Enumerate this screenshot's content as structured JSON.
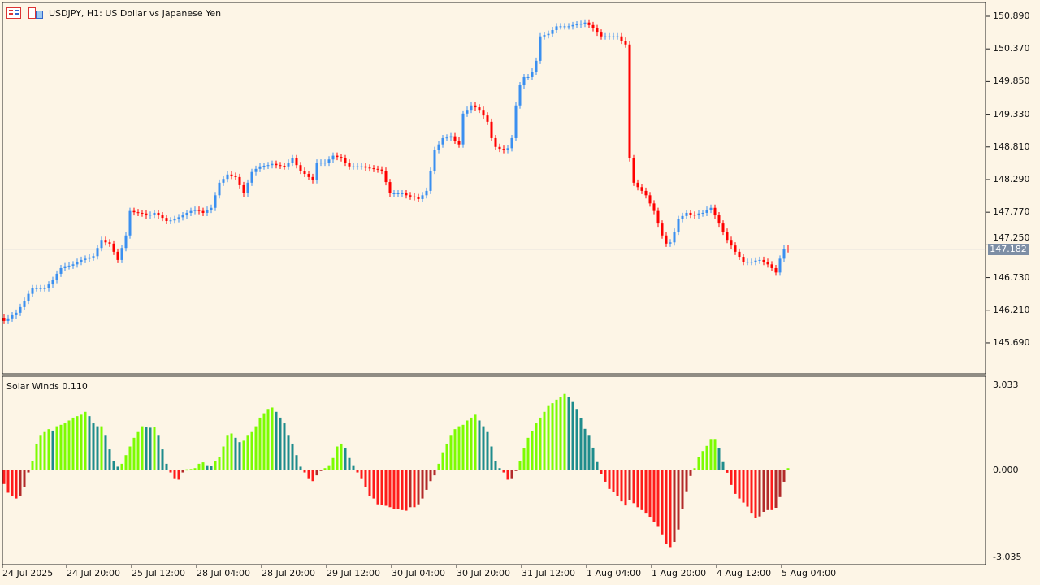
{
  "header": {
    "title": "USDJPY, H1:  US Dollar vs Japanese Yen",
    "icons": [
      "market-watch-icon",
      "chart-window-icon"
    ]
  },
  "indicator": {
    "title": "Solar Winds 0.110"
  },
  "current_price": "147.182",
  "colors": {
    "background": "#fdf5e6",
    "bull": "#3a8ff0",
    "bear": "#ff0000",
    "hist_up": "#7cfc00",
    "hist_down": "#1e8c8c",
    "hist_neg_down": "#ff1a1a",
    "hist_neg_up": "#b22a2a",
    "price_line": "#a8b4c4"
  },
  "chart_data": [
    {
      "type": "candlestick",
      "symbol": "USDJPY",
      "timeframe": "H1",
      "ylim": [
        145.5,
        151.0
      ],
      "y_ticks": [
        "150.890",
        "150.370",
        "149.850",
        "149.330",
        "148.810",
        "148.290",
        "147.770",
        "147.250",
        "146.730",
        "146.210",
        "145.690"
      ],
      "x_ticks": [
        "24 Jul 2025",
        "24 Jul 20:00",
        "25 Jul 12:00",
        "28 Jul 04:00",
        "28 Jul 20:00",
        "29 Jul 12:00",
        "30 Jul 04:00",
        "30 Jul 20:00",
        "31 Jul 12:00",
        "1 Aug 04:00",
        "1 Aug 20:00",
        "4 Aug 12:00",
        "5 Aug 04:00"
      ],
      "close": [
        146.04,
        146.08,
        146.13,
        146.17,
        146.26,
        146.36,
        146.47,
        146.56,
        146.56,
        146.56,
        146.56,
        146.62,
        146.69,
        146.79,
        146.88,
        146.91,
        146.92,
        146.94,
        146.98,
        147.01,
        147.03,
        147.05,
        147.07,
        147.2,
        147.33,
        147.29,
        147.27,
        147.14,
        147.01,
        147.2,
        147.4,
        147.79,
        147.77,
        147.76,
        147.75,
        147.72,
        147.73,
        147.76,
        147.72,
        147.68,
        147.63,
        147.64,
        147.66,
        147.69,
        147.72,
        147.76,
        147.79,
        147.81,
        147.79,
        147.76,
        147.81,
        147.84,
        148.04,
        148.24,
        148.3,
        148.37,
        148.35,
        148.33,
        148.2,
        148.07,
        148.24,
        148.41,
        148.46,
        148.5,
        148.51,
        148.52,
        148.54,
        148.52,
        148.51,
        148.5,
        148.56,
        148.63,
        148.52,
        148.43,
        148.38,
        148.33,
        148.28,
        148.56,
        148.56,
        148.56,
        148.61,
        148.67,
        148.65,
        148.63,
        148.56,
        148.5,
        148.5,
        148.5,
        148.5,
        148.48,
        148.47,
        148.46,
        148.45,
        148.43,
        148.25,
        148.07,
        148.07,
        148.07,
        148.07,
        148.04,
        148.02,
        148.01,
        147.98,
        148.04,
        148.11,
        148.43,
        148.76,
        148.85,
        148.95,
        148.96,
        148.98,
        148.91,
        148.85,
        149.34,
        149.4,
        149.47,
        149.44,
        149.4,
        149.31,
        149.21,
        148.95,
        148.81,
        148.78,
        148.76,
        148.79,
        148.95,
        149.47,
        149.79,
        149.92,
        149.92,
        150.01,
        150.18,
        150.57,
        150.59,
        150.61,
        150.67,
        150.73,
        150.73,
        150.73,
        150.73,
        150.75,
        150.76,
        150.77,
        150.79,
        150.75,
        150.7,
        150.63,
        150.57,
        150.57,
        150.57,
        150.57,
        150.57,
        150.5,
        150.44,
        148.63,
        148.24,
        148.17,
        148.11,
        148.04,
        147.91,
        147.79,
        147.59,
        147.4,
        147.27,
        147.29,
        147.46,
        147.66,
        147.71,
        147.76,
        147.73,
        147.72,
        147.75,
        147.76,
        147.81,
        147.84,
        147.72,
        147.59,
        147.46,
        147.33,
        147.24,
        147.14,
        147.06,
        146.98,
        146.98,
        146.98,
        147.0,
        147.01,
        146.98,
        146.94,
        146.88,
        146.81,
        147.03,
        147.19,
        147.18
      ]
    },
    {
      "type": "bar",
      "name": "Solar Winds 0.110",
      "ylim": [
        -3.035,
        3.033
      ],
      "y_ticks": [
        "3.033",
        "0.000",
        "-3.035"
      ],
      "values": [
        -0.5,
        -0.8,
        -0.9,
        -1.0,
        -0.9,
        -0.6,
        -0.1,
        0.3,
        0.9,
        1.2,
        1.3,
        1.4,
        1.35,
        1.5,
        1.55,
        1.6,
        1.7,
        1.8,
        1.85,
        1.9,
        2.0,
        1.85,
        1.6,
        1.5,
        1.5,
        1.2,
        0.7,
        0.3,
        0.1,
        0.2,
        0.5,
        0.8,
        1.1,
        1.3,
        1.5,
        1.48,
        1.45,
        1.47,
        1.2,
        0.7,
        0.2,
        -0.1,
        -0.3,
        -0.35,
        -0.1,
        0.01,
        0.02,
        0.05,
        0.2,
        0.25,
        0.15,
        0.12,
        0.3,
        0.45,
        0.8,
        1.2,
        1.25,
        1.1,
        0.95,
        1.0,
        1.2,
        1.3,
        1.5,
        1.8,
        1.95,
        2.1,
        2.15,
        2.0,
        1.8,
        1.6,
        1.2,
        0.9,
        0.5,
        0.1,
        -0.1,
        -0.3,
        -0.4,
        -0.2,
        -0.05,
        0.05,
        0.15,
        0.4,
        0.8,
        0.9,
        0.75,
        0.4,
        0.15,
        -0.1,
        -0.3,
        -0.6,
        -0.9,
        -1.0,
        -1.2,
        -1.22,
        -1.25,
        -1.3,
        -1.35,
        -1.37,
        -1.4,
        -1.42,
        -1.3,
        -1.3,
        -1.2,
        -1.0,
        -0.7,
        -0.4,
        -0.2,
        0.2,
        0.6,
        0.9,
        1.2,
        1.4,
        1.5,
        1.55,
        1.7,
        1.8,
        1.9,
        1.7,
        1.5,
        1.3,
        0.8,
        0.3,
        0.05,
        -0.1,
        -0.35,
        -0.3,
        -0.05,
        0.3,
        0.73,
        1.1,
        1.34,
        1.6,
        1.8,
        2.0,
        2.2,
        2.3,
        2.42,
        2.52,
        2.62,
        2.52,
        2.34,
        2.1,
        1.78,
        1.41,
        1.2,
        0.76,
        0.26,
        -0.14,
        -0.42,
        -0.67,
        -0.77,
        -0.9,
        -1.1,
        -1.24,
        -1.05,
        -1.16,
        -1.3,
        -1.4,
        -1.52,
        -1.63,
        -1.82,
        -1.98,
        -2.24,
        -2.56,
        -2.68,
        -2.5,
        -2.07,
        -1.37,
        -0.75,
        -0.22,
        0.05,
        0.44,
        0.64,
        0.82,
        1.06,
        1.06,
        0.73,
        0.26,
        -0.11,
        -0.53,
        -0.84,
        -1.0,
        -1.14,
        -1.28,
        -1.52,
        -1.68,
        -1.62,
        -1.46,
        -1.4,
        -1.4,
        -1.32,
        -0.95,
        -0.42,
        0.05
      ]
    }
  ]
}
